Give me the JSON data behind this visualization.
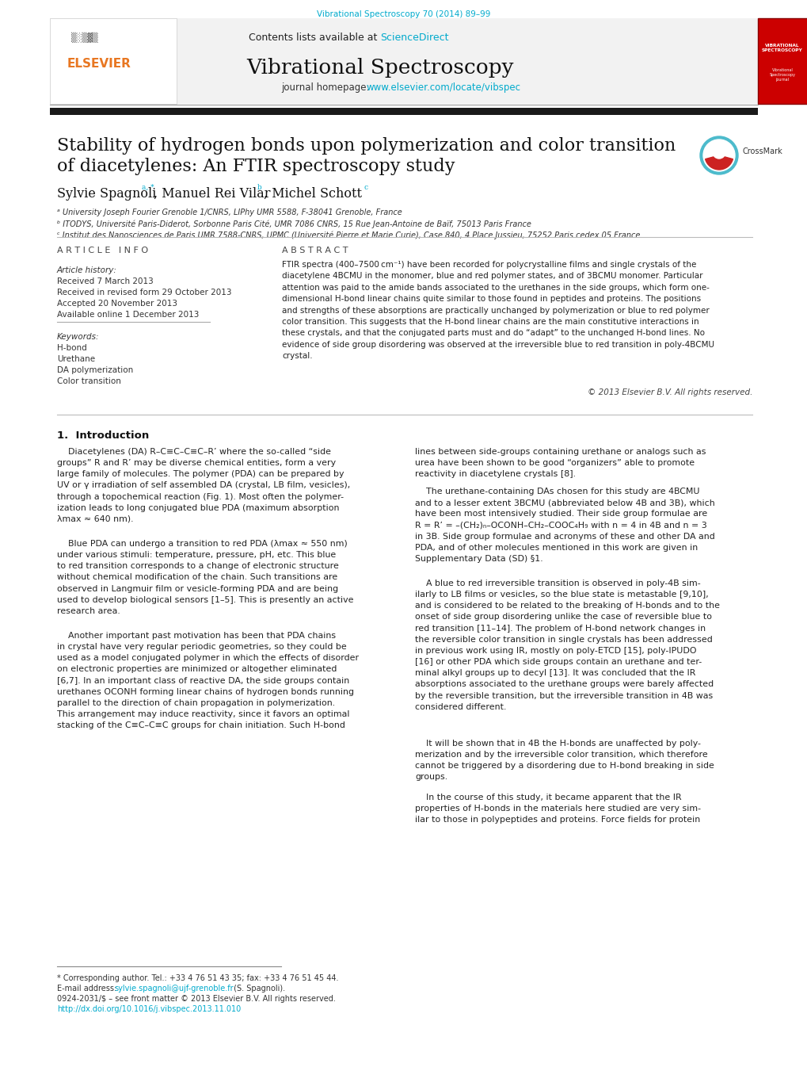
{
  "journal_ref": "Vibrational Spectroscopy 70 (2014) 89–99",
  "journal_name": "Vibrational Spectroscopy",
  "contents_text": "Contents lists available at ",
  "sciencedirect": "ScienceDirect",
  "homepage_text": "journal homepage: ",
  "homepage_url": "www.elsevier.com/locate/vibspec",
  "title_line1": "Stability of hydrogen bonds upon polymerization and color transition",
  "title_line2": "of diacetylenes: An FTIR spectroscopy study",
  "author1": "Sylvie Spagnoli",
  "author1_sup": "a, *",
  "author2": ", Manuel Rei Vilar",
  "author2_sup": "b",
  "author3": ", Michel Schott",
  "author3_sup": "c",
  "affil_a": "ᵃ University Joseph Fourier Grenoble 1/CNRS, LIPhy UMR 5588, F-38041 Grenoble, France",
  "affil_b": "ᵇ ITODYS, Université Paris-Diderot, Sorbonne Paris Cité, UMR 7086 CNRS, 15 Rue Jean-Antoine de Baïf, 75013 Paris France",
  "affil_c": "ᶜ Institut des Nanosciences de Paris UMR 7588-CNRS, UPMC (Université Pierre et Marie Curie), Case 840, 4 Place Jussieu, 75252 Paris cedex 05 France",
  "article_info_label": "A R T I C L E   I N F O",
  "abstract_label": "A B S T R A C T",
  "article_history_label": "Article history:",
  "received1": "Received 7 March 2013",
  "received2": "Received in revised form 29 October 2013",
  "accepted": "Accepted 20 November 2013",
  "available": "Available online 1 December 2013",
  "keywords_label": "Keywords:",
  "keyword1": "H-bond",
  "keyword2": "Urethane",
  "keyword3": "DA polymerization",
  "keyword4": "Color transition",
  "abstract_text": "FTIR spectra (400–7500 cm⁻¹) have been recorded for polycrystalline films and single crystals of the\ndiacetylene 4BCMU in the monomer, blue and red polymer states, and of 3BCMU monomer. Particular\nattention was paid to the amide bands associated to the urethanes in the side groups, which form one-\ndimensional H-bond linear chains quite similar to those found in peptides and proteins. The positions\nand strengths of these absorptions are practically unchanged by polymerization or blue to red polymer\ncolor transition. This suggests that the H-bond linear chains are the main constitutive interactions in\nthese crystals, and that the conjugated parts must and do “adapt” to the unchanged H-bond lines. No\nevidence of side group disordering was observed at the irreversible blue to red transition in poly-4BCMU\ncrystal.",
  "copyright": "© 2013 Elsevier B.V. All rights reserved.",
  "intro_label": "1.  Introduction",
  "intro_left1": "    Diacetylenes (DA) R–C≡C–C≡C–R’ where the so-called “side\ngroups” R and R’ may be diverse chemical entities, form a very\nlarge family of molecules. The polymer (PDA) can be prepared by\nUV or γ irradiation of self assembled DA (crystal, LB film, vesicles),\nthrough a topochemical reaction (Fig. 1). Most often the polymer-\nization leads to long conjugated blue PDA (maximum absorption\nλmax ≈ 640 nm).",
  "intro_left2": "    Blue PDA can undergo a transition to red PDA (λmax ≈ 550 nm)\nunder various stimuli: temperature, pressure, pH, etc. This blue\nto red transition corresponds to a change of electronic structure\nwithout chemical modification of the chain. Such transitions are\nobserved in Langmuir film or vesicle-forming PDA and are being\nused to develop biological sensors [1–5]. This is presently an active\nresearch area.",
  "intro_left3": "    Another important past motivation has been that PDA chains\nin crystal have very regular periodic geometries, so they could be\nused as a model conjugated polymer in which the effects of disorder\non electronic properties are minimized or altogether eliminated\n[6,7]. In an important class of reactive DA, the side groups contain\nurethanes OCONH forming linear chains of hydrogen bonds running\nparallel to the direction of chain propagation in polymerization.\nThis arrangement may induce reactivity, since it favors an optimal\nstacking of the C≡C–C≡C groups for chain initiation. Such H-bond",
  "intro_right1": "lines between side-groups containing urethane or analogs such as\nurea have been shown to be good “organizers” able to promote\nreactivity in diacetylene crystals [8].",
  "intro_right2": "    The urethane-containing DAs chosen for this study are 4BCMU\nand to a lesser extent 3BCMU (abbreviated below 4B and 3B), which\nhave been most intensively studied. Their side group formulae are\nR = R’ = –(CH₂)ₙ–OCONH–CH₂–COOC₄H₉ with n = 4 in 4B and n = 3\nin 3B. Side group formulae and acronyms of these and other DA and\nPDA, and of other molecules mentioned in this work are given in\nSupplementary Data (SD) §1.",
  "intro_right3": "    A blue to red irreversible transition is observed in poly-4B sim-\nilarly to LB films or vesicles, so the blue state is metastable [9,10],\nand is considered to be related to the breaking of H-bonds and to the\nonset of side group disordering unlike the case of reversible blue to\nred transition [11–14]. The problem of H-bond network changes in\nthe reversible color transition in single crystals has been addressed\nin previous work using IR, mostly on poly-ETCD [15], poly-IPUDO\n[16] or other PDA which side groups contain an urethane and ter-\nminal alkyl groups up to decyl [13]. It was concluded that the IR\nabsorptions associated to the urethane groups were barely affected\nby the reversible transition, but the irreversible transition in 4B was\nconsidered different.",
  "intro_right4": "    It will be shown that in 4B the H-bonds are unaffected by poly-\nmerization and by the irreversible color transition, which therefore\ncannot be triggered by a disordering due to H-bond breaking in side\ngroups.",
  "intro_right5": "    In the course of this study, it became apparent that the IR\nproperties of H-bonds in the materials here studied are very sim-\nilar to those in polypeptides and proteins. Force fields for protein",
  "footnote1": "* Corresponding author. Tel.: +33 4 76 51 43 35; fax: +33 4 76 51 45 44.",
  "footnote2_pre": "E-mail address: ",
  "footnote2_link": "sylvie.spagnoli@ujf-grenoble.fr",
  "footnote2_post": " (S. Spagnoli).",
  "footnote3": "0924-2031/$ – see front matter © 2013 Elsevier B.V. All rights reserved.",
  "footnote4": "http://dx.doi.org/10.1016/j.vibspec.2013.11.010",
  "bg_color": "#ffffff",
  "header_bg": "#f2f2f2",
  "link_color": "#00aacc",
  "orange_color": "#e87722",
  "red_banner_color": "#cc0000",
  "dark_color": "#111111",
  "gray_color": "#555555",
  "text_color": "#222222"
}
